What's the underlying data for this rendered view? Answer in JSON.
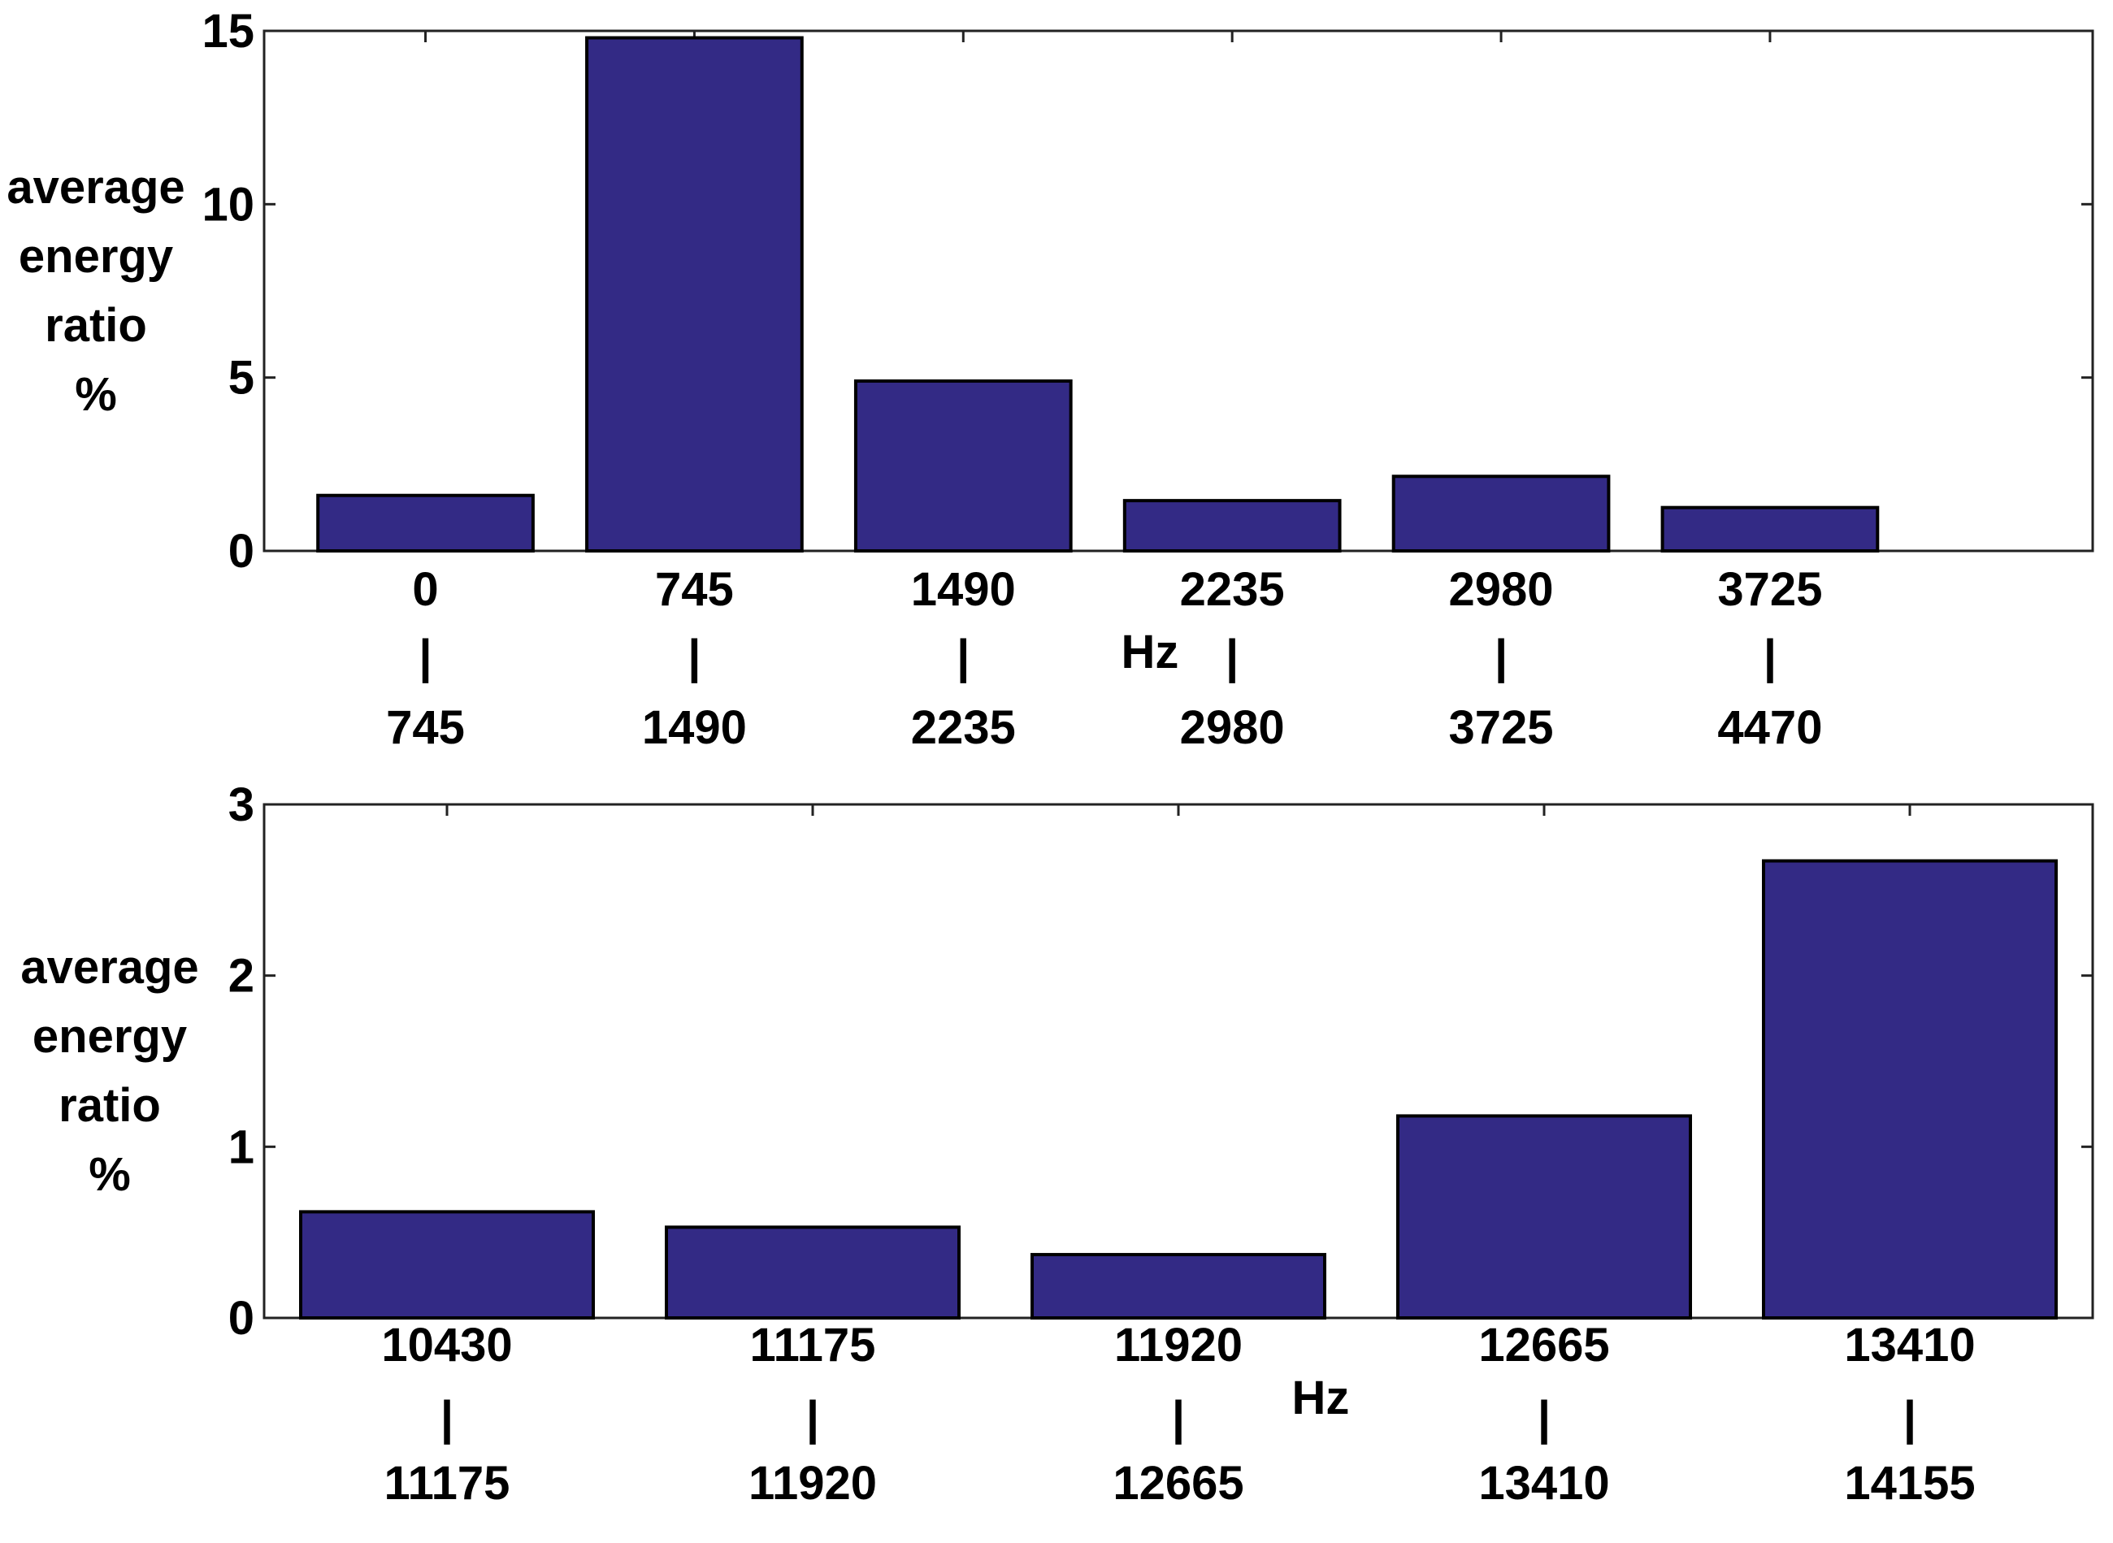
{
  "chart_data": [
    {
      "type": "bar",
      "ylabel": [
        "average",
        "energy",
        "ratio",
        "%"
      ],
      "xlabel": "Hz",
      "categories": [
        [
          "0",
          "|",
          "745"
        ],
        [
          "745",
          "|",
          "1490"
        ],
        [
          "1490",
          "|",
          "2235"
        ],
        [
          "2235",
          "|",
          "2980"
        ],
        [
          "2980",
          "|",
          "3725"
        ],
        [
          "3725",
          "|",
          "4470"
        ]
      ],
      "values": [
        1.6,
        14.8,
        4.9,
        1.45,
        2.15,
        1.25
      ],
      "ylim": [
        0,
        15
      ],
      "yticks": [
        0,
        5,
        10,
        15
      ],
      "xlim": [
        0.4,
        7.2
      ],
      "bar_color": "#332a85",
      "grid": false
    },
    {
      "type": "bar",
      "ylabel": [
        "average",
        "energy",
        "ratio",
        "%"
      ],
      "xlabel": "Hz",
      "categories": [
        [
          "10430",
          "|",
          "11175"
        ],
        [
          "11175",
          "|",
          "11920"
        ],
        [
          "11920",
          "|",
          "12665"
        ],
        [
          "12665",
          "|",
          "13410"
        ],
        [
          "13410",
          "|",
          "14155"
        ]
      ],
      "values": [
        0.62,
        0.53,
        0.37,
        1.18,
        2.67
      ],
      "ylim": [
        0,
        3
      ],
      "yticks": [
        0,
        1,
        2,
        3
      ],
      "xlim": [
        0.5,
        5.5
      ],
      "bar_color": "#332a85",
      "grid": false
    }
  ]
}
